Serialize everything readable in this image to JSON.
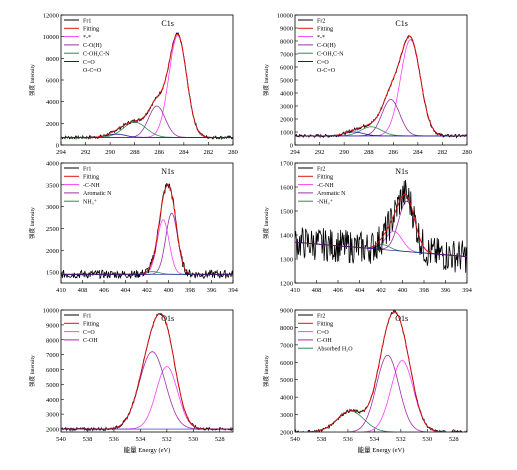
{
  "ylabel": "强度 Intensity",
  "xlabel": "能量 Energy (eV)",
  "colors": {
    "raw": "#000000",
    "fit": "#e01010",
    "c1": "#ff40ff",
    "c2": "#9b2fa8",
    "c3": "#2e8b57",
    "c4": "#1a1a9a",
    "c5": "#ffffff"
  },
  "chart_data": [
    {
      "type": "line",
      "title": "C1s",
      "xlim": [
        294,
        280
      ],
      "ylim": [
        0,
        12000
      ],
      "xticks": [
        "294",
        "292",
        "290",
        "288",
        "286",
        "284",
        "282",
        "280"
      ],
      "yticks": [
        "0",
        "2000",
        "4000",
        "6000",
        "8000",
        "10000",
        "12000"
      ],
      "legend": [
        "Fr1",
        "Fitting",
        "*-*",
        "C-O(H)",
        "C-OH,C-N",
        "C=O",
        "O-C=O"
      ],
      "baseline": 700,
      "peaks": [
        {
          "center": 284.5,
          "height": 9400,
          "fwhm": 1.7
        },
        {
          "center": 286.2,
          "height": 2900,
          "fwhm": 1.6
        },
        {
          "center": 288.0,
          "height": 1400,
          "fwhm": 2.2
        },
        {
          "center": 289.5,
          "height": 300,
          "fwhm": 1.8
        }
      ]
    },
    {
      "type": "line",
      "title": "C1s",
      "xlim": [
        294,
        280
      ],
      "ylim": [
        0,
        10000
      ],
      "xticks": [
        "294",
        "292",
        "290",
        "288",
        "286",
        "284",
        "282",
        "280"
      ],
      "yticks": [
        "0",
        "1000",
        "2000",
        "3000",
        "4000",
        "5000",
        "6000",
        "7000",
        "8000",
        "9000",
        "10000"
      ],
      "legend": [
        "Fr2",
        "Fitting",
        "*-*",
        "C-O(H)",
        "C-OH,C-N",
        "C=O",
        "O-C=O"
      ],
      "baseline": 700,
      "peaks": [
        {
          "center": 284.6,
          "height": 7400,
          "fwhm": 1.9
        },
        {
          "center": 286.2,
          "height": 2800,
          "fwhm": 1.7
        },
        {
          "center": 287.8,
          "height": 700,
          "fwhm": 2.0
        },
        {
          "center": 289.2,
          "height": 300,
          "fwhm": 1.8
        }
      ]
    },
    {
      "type": "line",
      "title": "N1s",
      "xlim": [
        410,
        394
      ],
      "ylim": [
        1250,
        4000
      ],
      "xticks": [
        "410",
        "408",
        "406",
        "404",
        "402",
        "400",
        "398",
        "396",
        "394"
      ],
      "yticks": [
        "1500",
        "2000",
        "2500",
        "3000",
        "3500",
        "4000"
      ],
      "legend": [
        "Fr1",
        "Fitting",
        "-C-NH",
        "Aromatic N",
        "NH₃⁺"
      ],
      "baseline": 1450,
      "peaks": [
        {
          "center": 400.5,
          "height": 1250,
          "fwhm": 1.3
        },
        {
          "center": 399.7,
          "height": 1400,
          "fwhm": 1.3
        },
        {
          "center": 401.5,
          "height": 60,
          "fwhm": 1.5
        }
      ]
    },
    {
      "type": "line",
      "title": "N1s",
      "xlim": [
        410,
        394
      ],
      "ylim": [
        1200,
        1700
      ],
      "xticks": [
        "410",
        "408",
        "406",
        "404",
        "402",
        "400",
        "398",
        "396",
        "394"
      ],
      "yticks": [
        "1200",
        "1300",
        "1400",
        "1500",
        "1600",
        "1700"
      ],
      "legend": [
        "Fr2",
        "Fitting",
        "-C-NH",
        "Aromatic N",
        "-NH₃⁺"
      ],
      "baseline_from": 1370,
      "baseline_to": 1310,
      "peaks": [
        {
          "center": 400.8,
          "height": 80,
          "fwhm": 1.8
        },
        {
          "center": 399.6,
          "height": 210,
          "fwhm": 1.8
        },
        {
          "center": 401.8,
          "height": 20,
          "fwhm": 1.5
        }
      ]
    },
    {
      "type": "line",
      "title": "O1s",
      "xlim": [
        540,
        527
      ],
      "ylim": [
        1800,
        10000
      ],
      "xticks": [
        "540",
        "538",
        "536",
        "534",
        "532",
        "530",
        "528"
      ],
      "yticks": [
        "2000",
        "3000",
        "4000",
        "5000",
        "6000",
        "7000",
        "8000",
        "9000",
        "10000"
      ],
      "legend": [
        "Fr1",
        "Fitting",
        "C=O",
        "C-OH"
      ],
      "baseline": 2000,
      "peaks": [
        {
          "center": 532.0,
          "height": 4200,
          "fwhm": 1.9
        },
        {
          "center": 533.1,
          "height": 5200,
          "fwhm": 2.3
        }
      ]
    },
    {
      "type": "line",
      "title": "O1s",
      "xlim": [
        540,
        527
      ],
      "ylim": [
        2000,
        9000
      ],
      "xticks": [
        "540",
        "538",
        "536",
        "534",
        "532",
        "530",
        "528"
      ],
      "yticks": [
        "2000",
        "3000",
        "4000",
        "5000",
        "6000",
        "7000",
        "8000",
        "9000"
      ],
      "legend": [
        "Fr2",
        "Fitting",
        "C=O",
        "C-OH",
        "Absorbed H₂O"
      ],
      "baseline": 2000,
      "peaks": [
        {
          "center": 531.9,
          "height": 4100,
          "fwhm": 2.0
        },
        {
          "center": 533.0,
          "height": 4400,
          "fwhm": 2.0
        },
        {
          "center": 535.8,
          "height": 1200,
          "fwhm": 2.4
        }
      ]
    }
  ]
}
